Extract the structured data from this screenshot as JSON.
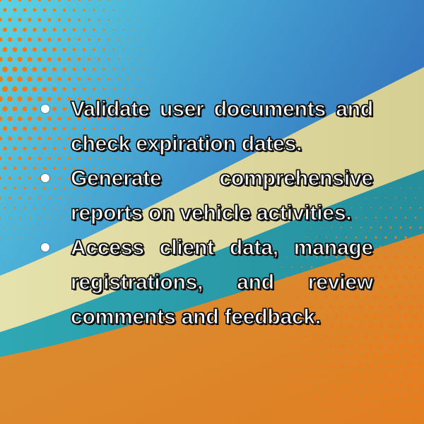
{
  "colors": {
    "background_blue_start": "#5bd3e3",
    "background_blue_end": "#2f63b3",
    "cream_band": "#ddd89f",
    "teal_band": "#2b9aa6",
    "orange_bottom": "#d98a2c",
    "halftone_dots": "#f07a1a",
    "text": "#ffffff",
    "text_outline": "#111111"
  },
  "bullets": [
    {
      "text": "Validate user documents and check expiration dates."
    },
    {
      "text": "Generate comprehensive reports on vehicle activities."
    },
    {
      "text": "Access client data, manage registrations, and review comments and feedback."
    }
  ]
}
